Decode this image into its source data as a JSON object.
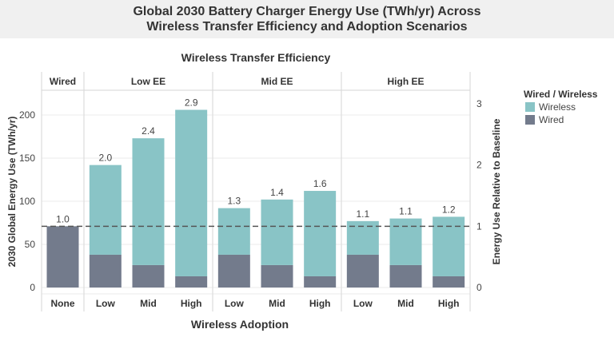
{
  "title": {
    "line1": "Global 2030 Battery Charger Energy Use (TWh/yr) Across",
    "line2": "Wireless Transfer Efficiency and Adoption Scenarios"
  },
  "chart_data": {
    "type": "bar",
    "stacked": true,
    "facet_title": "Wireless Transfer Efficiency",
    "facets": [
      {
        "label": "Wired",
        "categories": [
          "None"
        ]
      },
      {
        "label": "Low EE",
        "categories": [
          "Low",
          "Mid",
          "High"
        ]
      },
      {
        "label": "Mid EE",
        "categories": [
          "Low",
          "Mid",
          "High"
        ]
      },
      {
        "label": "High EE",
        "categories": [
          "Low",
          "Mid",
          "High"
        ]
      }
    ],
    "series": [
      {
        "name": "Wired",
        "values": [
          71,
          38,
          26,
          13,
          38,
          26,
          13,
          38,
          26,
          13
        ]
      },
      {
        "name": "Wireless",
        "values": [
          0,
          104,
          147,
          193,
          54,
          76,
          99,
          39,
          54,
          69
        ]
      }
    ],
    "data_labels": [
      "1.0",
      "2.0",
      "2.4",
      "2.9",
      "1.3",
      "1.4",
      "1.6",
      "1.1",
      "1.1",
      "1.2"
    ],
    "xlabel": "Wireless Adoption",
    "ylabel": "2030 Global Energy Use (TWh/yr)",
    "ylabel_right": "Energy Use Relative to Baseline",
    "ylim": [
      0,
      225
    ],
    "yticks": [
      0,
      50,
      100,
      150,
      200
    ],
    "ylim_right": [
      0,
      3.17
    ],
    "yticks_right": [
      0,
      1,
      2,
      3
    ],
    "baseline": 71,
    "legend": {
      "title": "Wired / Wireless",
      "position": "right",
      "items": [
        "Wireless",
        "Wired"
      ]
    },
    "colors": {
      "Wireless": "#89c4c6",
      "Wired": "#737b8c"
    },
    "grid": true
  }
}
